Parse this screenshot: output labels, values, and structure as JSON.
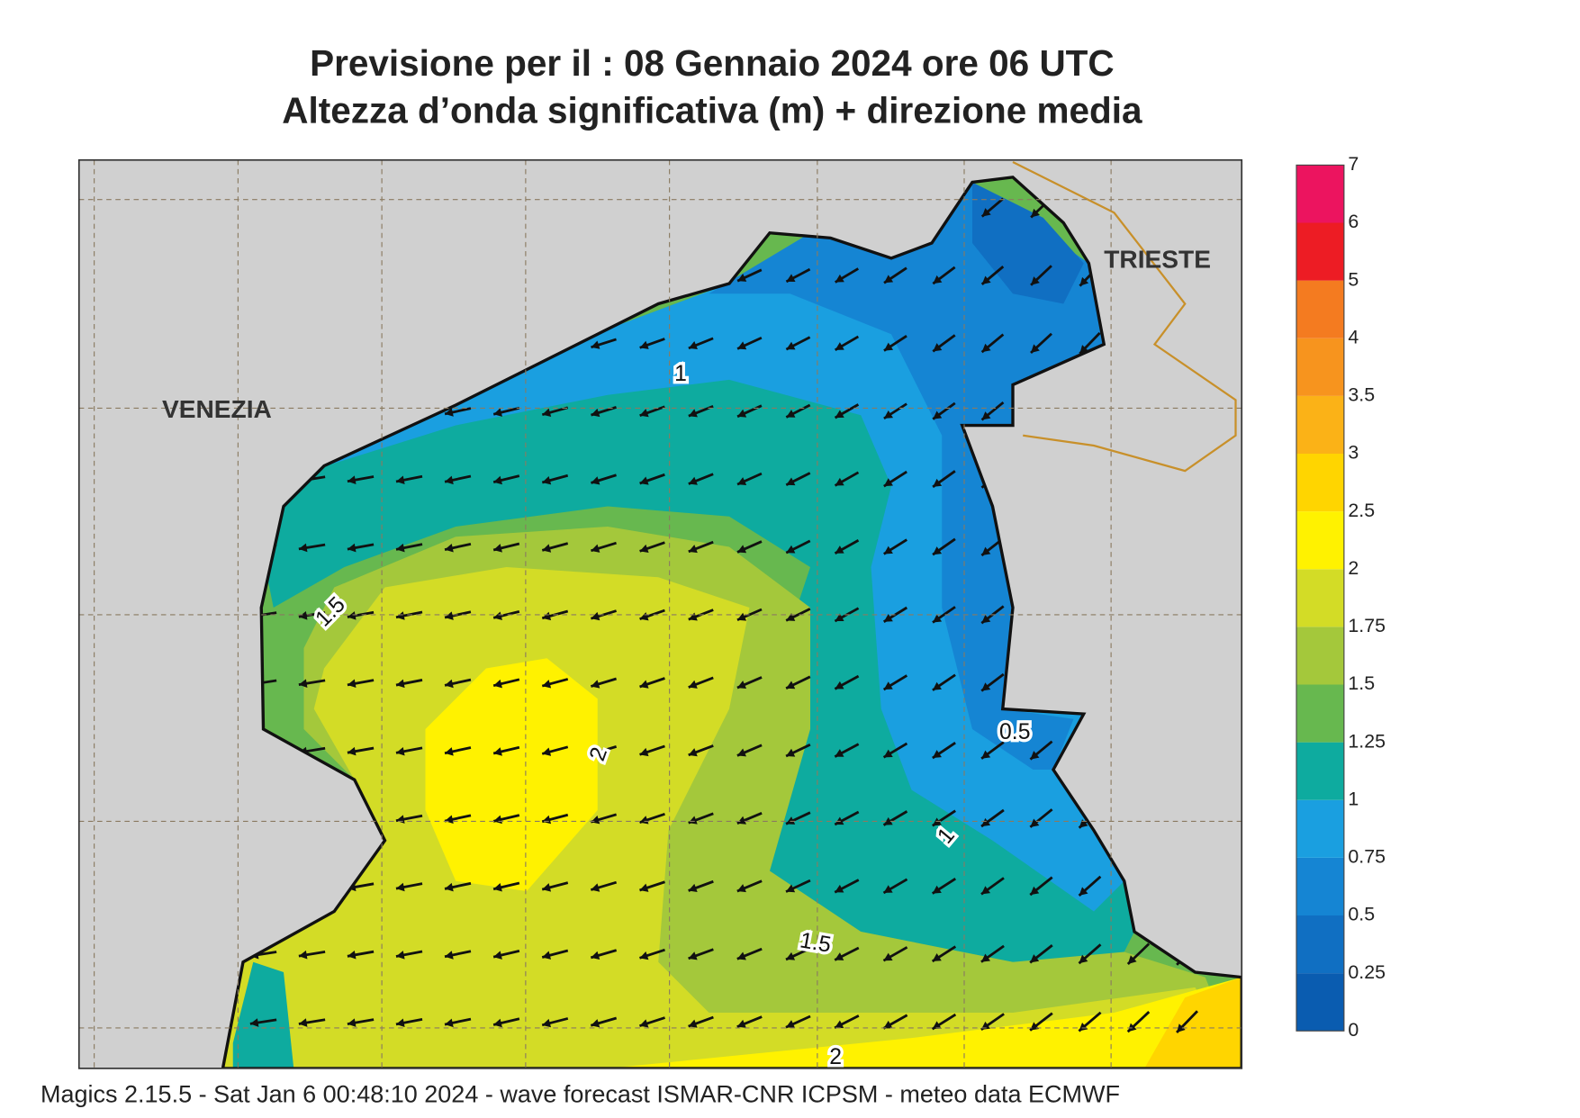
{
  "header": {
    "title": "Previsione per il  :  08  Gennaio  2024   ore 06 UTC",
    "subtitle": "Altezza d’onda significativa (m) + direzione media"
  },
  "places": [
    "VENEZIA",
    "TRIESTE"
  ],
  "contour_labels": [
    "1",
    "1.5",
    "2",
    "0.5",
    "1",
    "1.5",
    "2"
  ],
  "colorbar": {
    "levels": [
      0,
      0.25,
      0.5,
      0.75,
      1,
      1.25,
      1.5,
      1.75,
      2,
      2.5,
      3,
      3.5,
      4,
      5,
      6,
      7
    ],
    "colors": [
      "#0a5cb0",
      "#106fc2",
      "#1585d3",
      "#1a9fe0",
      "#0eab9f",
      "#67b84f",
      "#a4c83b",
      "#d3dc26",
      "#fff200",
      "#ffd500",
      "#fbb217",
      "#f7941e",
      "#f47b20",
      "#ed1c24",
      "#ec145f"
    ]
  },
  "footer": "Magics 2.15.5 - Sat Jan  6 00:48:10 2024 - wave forecast  ISMAR-CNR  ICPSM - meteo data   ECMWF"
}
